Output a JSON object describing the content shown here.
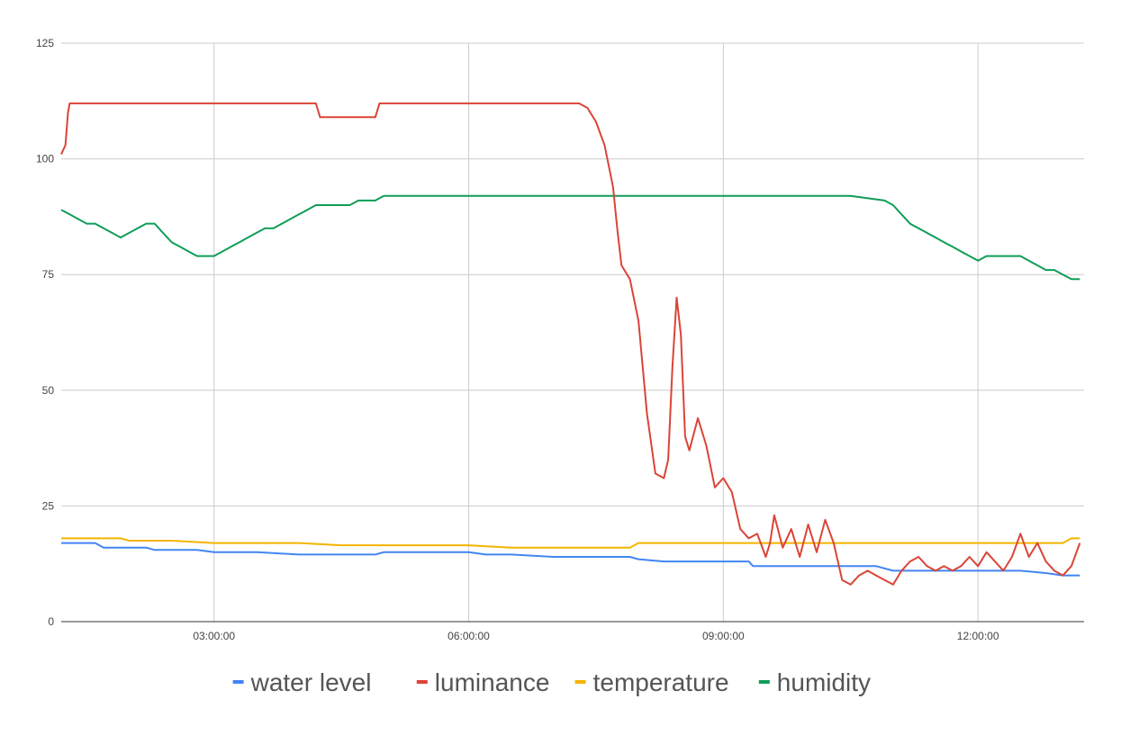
{
  "chart_data": {
    "type": "line",
    "title": "",
    "xlabel": "",
    "ylabel": "",
    "x_range_hours": [
      1.2,
      13.25
    ],
    "ylim": [
      0,
      125
    ],
    "y_ticks": [
      0,
      25,
      50,
      75,
      100,
      125
    ],
    "x_ticks": [
      {
        "value": 3,
        "label": "03:00:00"
      },
      {
        "value": 6,
        "label": "06:00:00"
      },
      {
        "value": 9,
        "label": "09:00:00"
      },
      {
        "value": 12,
        "label": "12:00:00"
      }
    ],
    "grid": true,
    "legend_position": "bottom",
    "series": [
      {
        "name": "water level",
        "color": "#4285F4",
        "x": [
          1.2,
          1.6,
          1.7,
          2.2,
          2.3,
          2.8,
          3.0,
          3.5,
          4.0,
          4.5,
          4.9,
          5.0,
          5.5,
          6.0,
          6.2,
          6.5,
          7.0,
          7.5,
          7.9,
          8.0,
          8.3,
          8.6,
          9.0,
          9.3,
          9.35,
          10.0,
          10.5,
          10.8,
          11.0,
          11.5,
          12.0,
          12.5,
          12.8,
          13.0,
          13.2
        ],
        "y": [
          17,
          17,
          16,
          16,
          15.5,
          15.5,
          15,
          15,
          14.5,
          14.5,
          14.5,
          15,
          15,
          15,
          14.5,
          14.5,
          14,
          14,
          14,
          13.5,
          13,
          13,
          13,
          13,
          12,
          12,
          12,
          12,
          11,
          11,
          11,
          11,
          10.5,
          10,
          10
        ]
      },
      {
        "name": "luminance",
        "color": "#DB4437",
        "x": [
          1.2,
          1.25,
          1.28,
          1.3,
          1.4,
          1.8,
          2.5,
          3.5,
          4.2,
          4.25,
          4.9,
          4.95,
          5.5,
          6.5,
          7.3,
          7.4,
          7.5,
          7.6,
          7.7,
          7.75,
          7.8,
          7.9,
          8.0,
          8.1,
          8.2,
          8.3,
          8.35,
          8.4,
          8.45,
          8.5,
          8.55,
          8.6,
          8.7,
          8.8,
          8.9,
          9.0,
          9.1,
          9.2,
          9.3,
          9.4,
          9.5,
          9.55,
          9.6,
          9.7,
          9.8,
          9.9,
          10.0,
          10.1,
          10.2,
          10.3,
          10.4,
          10.5,
          10.6,
          10.7,
          10.8,
          10.9,
          11.0,
          11.1,
          11.2,
          11.3,
          11.4,
          11.5,
          11.6,
          11.7,
          11.8,
          11.9,
          12.0,
          12.1,
          12.2,
          12.3,
          12.4,
          12.5,
          12.6,
          12.7,
          12.8,
          12.9,
          13.0,
          13.1,
          13.2
        ],
        "y": [
          101,
          103,
          110,
          112,
          112,
          112,
          112,
          112,
          112,
          109,
          109,
          112,
          112,
          112,
          112,
          111,
          108,
          103,
          94,
          85,
          77,
          74,
          65,
          45,
          32,
          31,
          35,
          55,
          70,
          62,
          40,
          37,
          44,
          38,
          29,
          31,
          28,
          20,
          18,
          19,
          14,
          17,
          23,
          16,
          20,
          14,
          21,
          15,
          22,
          17,
          9,
          8,
          10,
          11,
          10,
          9,
          8,
          11,
          13,
          14,
          12,
          11,
          12,
          11,
          12,
          14,
          12,
          15,
          13,
          11,
          14,
          19,
          14,
          17,
          13,
          11,
          10,
          12,
          17
        ]
      },
      {
        "name": "temperature",
        "color": "#F4B400",
        "x": [
          1.2,
          1.9,
          2.0,
          2.5,
          3.0,
          3.5,
          4.0,
          4.5,
          5.0,
          5.5,
          6.0,
          6.5,
          7.0,
          7.5,
          7.9,
          8.0,
          8.5,
          9.0,
          9.5,
          10.0,
          10.5,
          11.0,
          11.5,
          12.0,
          12.5,
          12.8,
          13.0,
          13.1,
          13.2
        ],
        "y": [
          18,
          18,
          17.5,
          17.5,
          17,
          17,
          17,
          16.5,
          16.5,
          16.5,
          16.5,
          16,
          16,
          16,
          16,
          17,
          17,
          17,
          17,
          17,
          17,
          17,
          17,
          17,
          17,
          17,
          17,
          18,
          18
        ]
      },
      {
        "name": "humidity",
        "color": "#0F9D58",
        "x": [
          1.2,
          1.3,
          1.4,
          1.5,
          1.6,
          1.7,
          1.8,
          1.9,
          2.0,
          2.1,
          2.2,
          2.3,
          2.4,
          2.5,
          2.6,
          2.7,
          2.8,
          2.9,
          3.0,
          3.1,
          3.2,
          3.3,
          3.4,
          3.5,
          3.6,
          3.7,
          3.8,
          3.9,
          4.0,
          4.1,
          4.2,
          4.3,
          4.4,
          4.5,
          4.6,
          4.7,
          4.8,
          4.9,
          5.0,
          6.0,
          7.0,
          8.0,
          9.0,
          10.0,
          10.5,
          10.9,
          11.0,
          11.1,
          11.2,
          11.3,
          11.4,
          11.5,
          11.6,
          11.7,
          11.8,
          11.9,
          12.0,
          12.1,
          12.2,
          12.3,
          12.4,
          12.5,
          12.6,
          12.7,
          12.8,
          12.9,
          13.0,
          13.1,
          13.2
        ],
        "y": [
          89,
          88,
          87,
          86,
          86,
          85,
          84,
          83,
          84,
          85,
          86,
          86,
          84,
          82,
          81,
          80,
          79,
          79,
          79,
          80,
          81,
          82,
          83,
          84,
          85,
          85,
          86,
          87,
          88,
          89,
          90,
          90,
          90,
          90,
          90,
          91,
          91,
          91,
          92,
          92,
          92,
          92,
          92,
          92,
          92,
          91,
          90,
          88,
          86,
          85,
          84,
          83,
          82,
          81,
          80,
          79,
          78,
          79,
          79,
          79,
          79,
          79,
          78,
          77,
          76,
          76,
          75,
          74,
          74
        ]
      }
    ]
  }
}
